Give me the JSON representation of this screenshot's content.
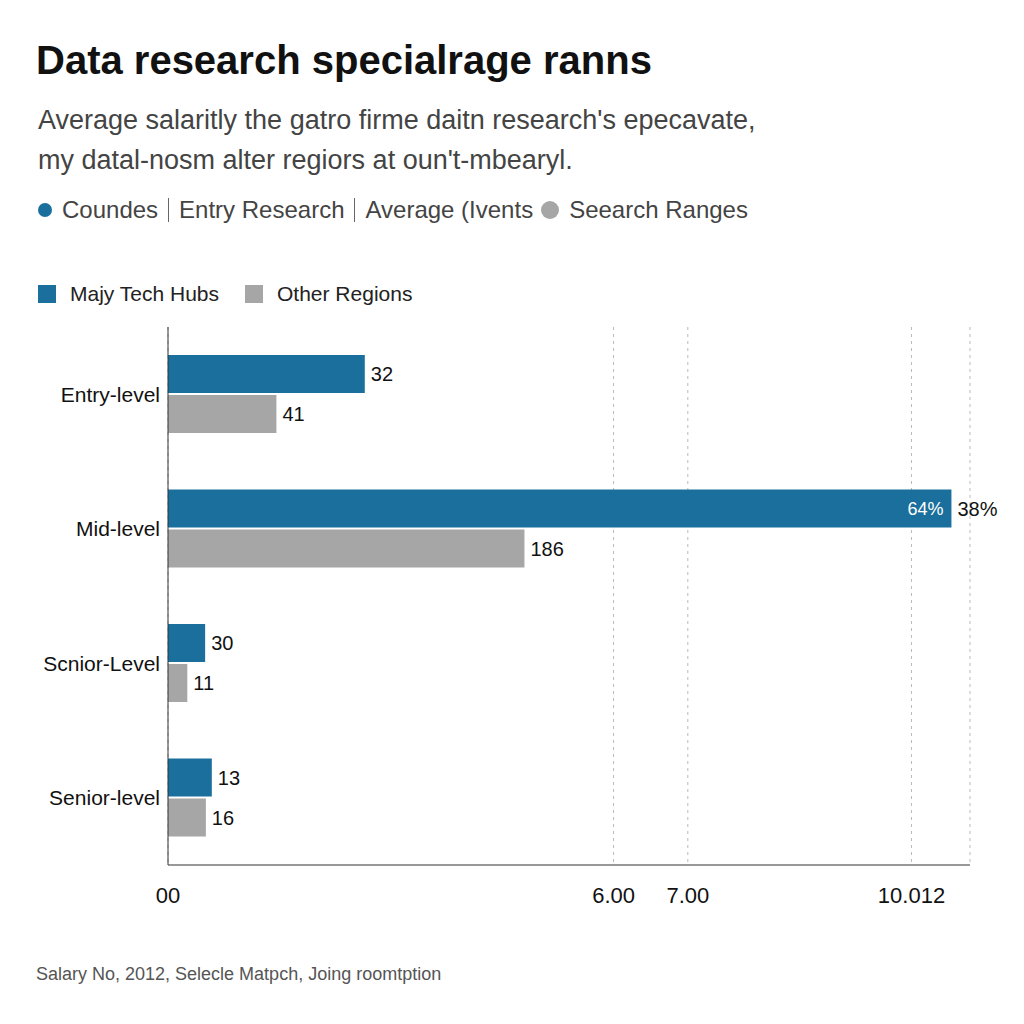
{
  "chart_data": {
    "type": "bar",
    "orientation": "horizontal",
    "title": "Data research specialrage ranns",
    "subtitle": [
      "Average salaritly the gatro firme daitn research's epecavate,",
      "my datal-nosm alter regiors at oun't-mbearyl."
    ],
    "header_items": [
      "Coundes",
      "Entry Research",
      "Average (Ivents",
      "Seearch Ranges"
    ],
    "categories": [
      "Entry-level",
      "Mid-level",
      "Scnior-Level",
      "Senior-level"
    ],
    "series": [
      {
        "name": "Majy Tech Hubs",
        "color": "#1b6f9c",
        "values": [
          2.65,
          10.55,
          0.5,
          0.59
        ]
      },
      {
        "name": "Other Regions",
        "color": "#a6a6a6",
        "values": [
          1.46,
          4.8,
          0.26,
          0.51
        ]
      }
    ],
    "xlim": [
      0,
      10.8
    ],
    "xticks": [
      {
        "value": 0,
        "label": "00"
      },
      {
        "value": 6,
        "label": "6.00"
      },
      {
        "value": 7,
        "label": "7.00"
      },
      {
        "value": 10.012,
        "label": "10.012"
      }
    ],
    "grid": true,
    "legend": "top-left",
    "annotations": [
      {
        "text": "32",
        "series": "Majy Tech Hubs",
        "category": "Entry-level"
      },
      {
        "text": "41",
        "series": "Other Regions",
        "category": "Entry-level"
      },
      {
        "text": "64%",
        "series": "Majy Tech Hubs",
        "category": "Mid-level"
      },
      {
        "text": "38%",
        "series": "Majy Tech Hubs",
        "category": "Mid-level"
      },
      {
        "text": "186",
        "series": "Other Regions",
        "category": "Mid-level"
      },
      {
        "text": "30",
        "series": "Majy Tech Hubs",
        "category": "Scnior-Level"
      },
      {
        "text": "11",
        "series": "Other Regions",
        "category": "Scnior-Level"
      },
      {
        "text": "13",
        "series": "Majy Tech Hubs",
        "category": "Senior-level"
      },
      {
        "text": "16",
        "series": "Other Regions",
        "category": "Senior-level"
      }
    ],
    "source": "Salary No, 2012, Selecle Matpch, Joing roomtption"
  }
}
